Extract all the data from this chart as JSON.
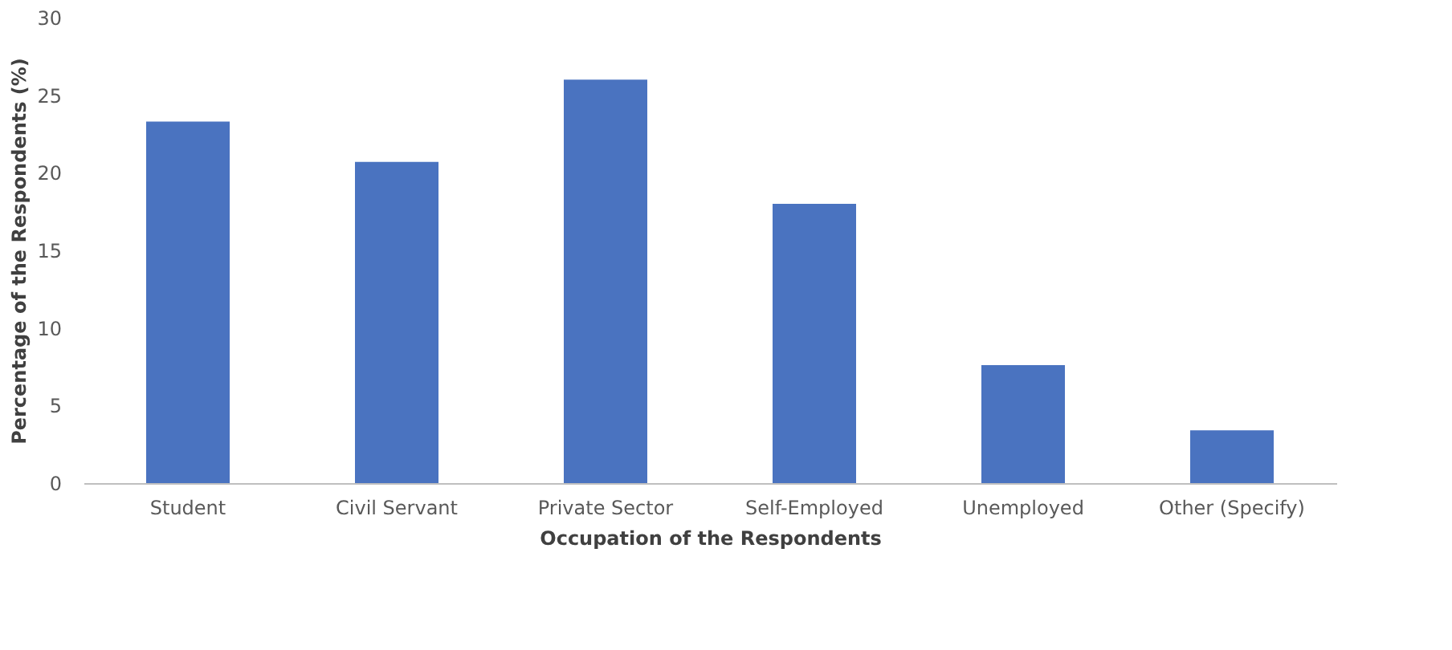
{
  "chart_data": {
    "type": "bar",
    "xlabel": "Occupation of the Respondents",
    "ylabel": "Percentage of the Respondents (%)",
    "categories": [
      "Student",
      "Civil Servant",
      "Private Sector",
      "Self-Employed",
      "Unemployed",
      "Other (Specify)"
    ],
    "values": [
      23.3,
      20.7,
      26.0,
      18.0,
      7.6,
      3.4
    ],
    "color": "#4a73c0",
    "ylim": [
      0,
      30
    ],
    "yticks": [
      0,
      5,
      10,
      15,
      20,
      25,
      30
    ],
    "grid": false
  }
}
